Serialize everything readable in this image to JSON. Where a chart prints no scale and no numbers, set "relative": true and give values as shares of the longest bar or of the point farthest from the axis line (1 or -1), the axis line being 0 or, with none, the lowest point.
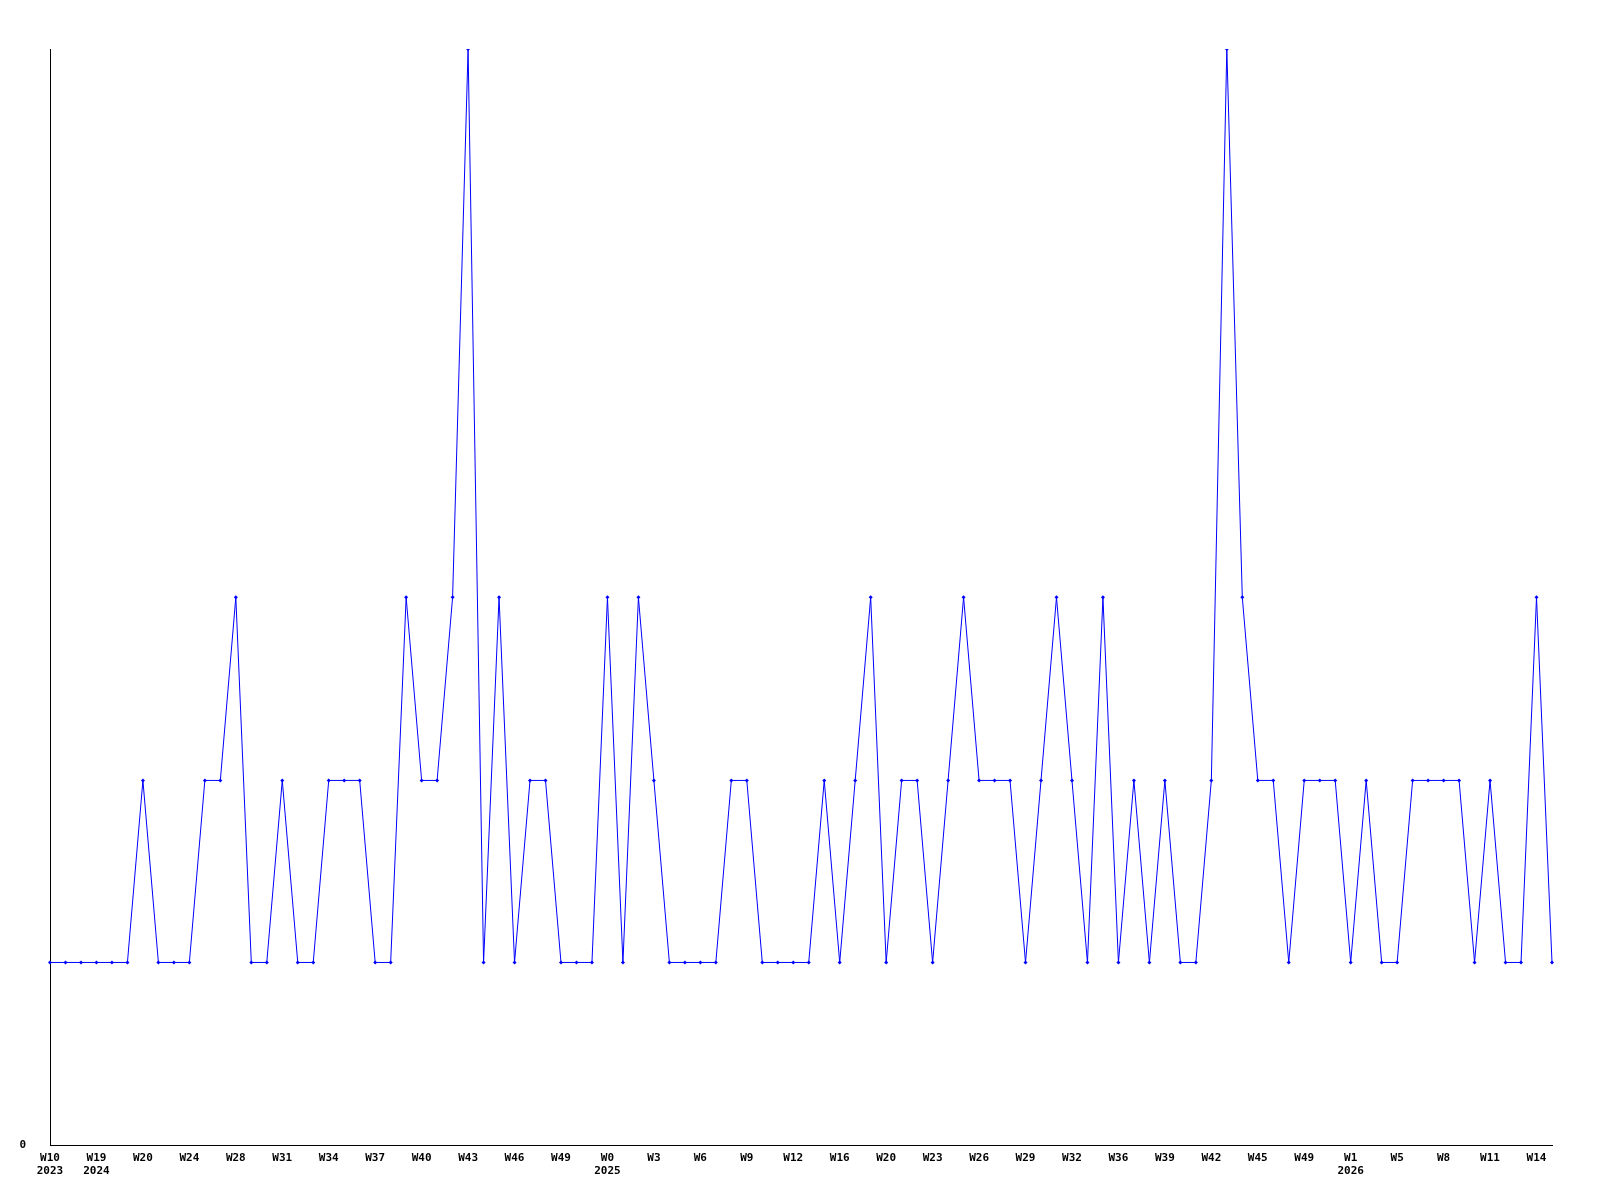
{
  "chart_data": {
    "type": "line",
    "relative": true,
    "color": "#0000ff",
    "marker": "diamond",
    "line_style": "solid",
    "grid": false,
    "legend": false,
    "annotations": [
      "0"
    ],
    "categories": [
      "W10\n2023",
      null,
      null,
      "W19\n2024",
      null,
      null,
      "W20",
      null,
      null,
      "W24",
      null,
      null,
      "W28",
      null,
      null,
      "W31",
      null,
      null,
      "W34",
      null,
      null,
      "W37",
      null,
      null,
      "W40",
      null,
      null,
      "W43",
      null,
      null,
      "W46",
      null,
      null,
      "W49",
      null,
      null,
      "W0\n2025",
      null,
      null,
      "W3",
      null,
      null,
      "W6",
      null,
      null,
      "W9",
      null,
      null,
      "W12",
      null,
      null,
      "W16",
      null,
      null,
      "W20",
      null,
      null,
      "W23",
      null,
      null,
      "W26",
      null,
      null,
      "W29",
      null,
      null,
      "W32",
      null,
      null,
      "W36",
      null,
      null,
      "W39",
      null,
      null,
      "W42",
      null,
      null,
      "W45",
      null,
      null,
      "W49",
      null,
      null,
      "W1\n2026",
      null,
      null,
      "W5",
      null,
      null,
      "W8",
      null,
      null,
      "W11",
      null,
      null,
      "W14",
      null
    ],
    "values": [
      0.167,
      0.167,
      0.167,
      0.167,
      0.167,
      0.167,
      0.333,
      0.167,
      0.167,
      0.167,
      0.333,
      0.333,
      0.5,
      0.167,
      0.167,
      0.333,
      0.167,
      0.167,
      0.333,
      0.333,
      0.333,
      0.167,
      0.167,
      0.5,
      0.333,
      0.333,
      0.5,
      1,
      0.167,
      0.5,
      0.167,
      0.333,
      0.333,
      0.167,
      0.167,
      0.167,
      0.5,
      0.167,
      0.5,
      0.333,
      0.167,
      0.167,
      0.167,
      0.167,
      0.333,
      0.333,
      0.167,
      0.167,
      0.167,
      0.167,
      0.333,
      0.167,
      0.333,
      0.5,
      0.167,
      0.333,
      0.333,
      0.167,
      0.333,
      0.5,
      0.333,
      0.333,
      0.333,
      0.167,
      0.333,
      0.5,
      0.333,
      0.167,
      0.5,
      0.167,
      0.333,
      0.167,
      0.333,
      0.167,
      0.167,
      0.333,
      1,
      0.5,
      0.333,
      0.333,
      0.167,
      0.333,
      0.333,
      0.333,
      0.167,
      0.333,
      0.167,
      0.167,
      0.333,
      0.333,
      0.333,
      0.333,
      0.167,
      0.333,
      0.167,
      0.167,
      0.5,
      0.167
    ]
  }
}
